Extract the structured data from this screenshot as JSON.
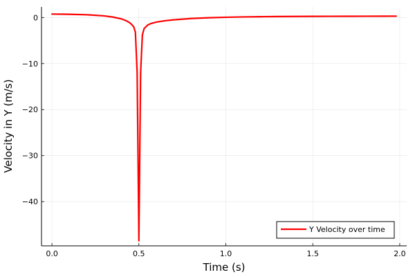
{
  "chart_data": {
    "type": "line",
    "title": "",
    "xlabel": "Time (s)",
    "ylabel": "Velocity in Y (m/s)",
    "xlim": [
      -0.06,
      2.04
    ],
    "ylim": [
      -49.6,
      2.3
    ],
    "xticks": [
      0.0,
      0.5,
      1.0,
      1.5,
      2.0
    ],
    "xtick_labels": [
      "0.0",
      "0.5",
      "1.0",
      "1.5",
      "2.0"
    ],
    "yticks": [
      0,
      -10,
      -20,
      -30,
      -40
    ],
    "ytick_labels": [
      "0",
      "−10",
      "−20",
      "−30",
      "−40"
    ],
    "grid": true,
    "legend_position": "bottom-right",
    "series": [
      {
        "name": "Y Velocity over time",
        "color": "#ff0000",
        "x": [
          0.0,
          0.1,
          0.2,
          0.3,
          0.35,
          0.4,
          0.43,
          0.45,
          0.47,
          0.48,
          0.49,
          0.5,
          0.51,
          0.52,
          0.53,
          0.55,
          0.57,
          0.6,
          0.65,
          0.7,
          0.8,
          0.9,
          1.0,
          1.1,
          1.2,
          1.3,
          1.4,
          1.5,
          1.6,
          1.7,
          1.8,
          1.9,
          1.98
        ],
        "y": [
          0.75,
          0.7,
          0.6,
          0.35,
          0.1,
          -0.3,
          -0.75,
          -1.2,
          -2.0,
          -3.2,
          -12.0,
          -48.5,
          -12.0,
          -3.8,
          -2.4,
          -1.65,
          -1.3,
          -1.0,
          -0.7,
          -0.5,
          -0.22,
          -0.05,
          0.05,
          0.13,
          0.18,
          0.21,
          0.23,
          0.25,
          0.26,
          0.27,
          0.28,
          0.29,
          0.3
        ]
      }
    ]
  }
}
